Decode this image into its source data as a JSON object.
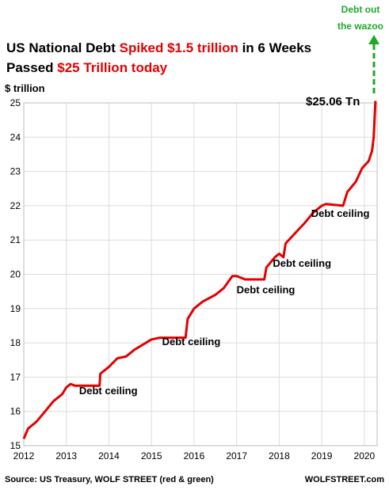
{
  "title": {
    "line1": [
      {
        "text": "US National Debt ",
        "color": "#000000"
      },
      {
        "text": "Spiked $1.5 trillion",
        "color": "#e30000"
      },
      {
        "text": " in 6 Weeks",
        "color": "#000000"
      }
    ],
    "line2": [
      {
        "text": "Passed ",
        "color": "#000000"
      },
      {
        "text": "$25 Trillion today",
        "color": "#e30000"
      }
    ]
  },
  "colors": {
    "series": "#e30000",
    "spike": "#1fa82a",
    "grid": "#dcdcdc"
  },
  "chart_data": {
    "type": "line",
    "ylabel": "$ trillion",
    "ylim": [
      15,
      25
    ],
    "xlim": [
      2012,
      2020.3
    ],
    "x_ticks": [
      "2012",
      "2013",
      "2014",
      "2015",
      "2016",
      "2017",
      "2018",
      "2019",
      "2020"
    ],
    "y_ticks": [
      "15",
      "16",
      "17",
      "18",
      "19",
      "20",
      "21",
      "22",
      "23",
      "24",
      "25"
    ],
    "grid": true,
    "series": [
      {
        "x": [
          2012.0,
          2012.1,
          2012.3,
          2012.5,
          2012.7,
          2012.9,
          2013.0,
          2013.1,
          2013.2,
          2013.6,
          2013.78,
          2013.8,
          2014.0,
          2014.2,
          2014.4,
          2014.6,
          2014.8,
          2015.0,
          2015.2,
          2015.8,
          2015.85,
          2016.0,
          2016.2,
          2016.5,
          2016.7,
          2016.9,
          2017.0,
          2017.2,
          2017.65,
          2017.7,
          2017.9,
          2018.0,
          2018.1,
          2018.15,
          2018.3,
          2018.6,
          2018.8,
          2019.0,
          2019.1,
          2019.5,
          2019.6,
          2019.8,
          2019.95,
          2020.1,
          2020.18,
          2020.22,
          2020.26
        ],
        "values": [
          15.2,
          15.5,
          15.7,
          16.0,
          16.3,
          16.5,
          16.7,
          16.8,
          16.75,
          16.75,
          16.75,
          17.1,
          17.3,
          17.55,
          17.6,
          17.8,
          17.95,
          18.1,
          18.15,
          18.15,
          18.7,
          19.0,
          19.2,
          19.4,
          19.6,
          19.95,
          19.95,
          19.85,
          19.85,
          20.2,
          20.5,
          20.6,
          20.5,
          20.9,
          21.1,
          21.5,
          21.8,
          22.0,
          22.05,
          22.0,
          22.4,
          22.7,
          23.1,
          23.3,
          23.6,
          24.0,
          25.06
        ]
      }
    ],
    "annotations": [
      {
        "text": "Debt ceiling",
        "x": 2013.3,
        "y": 16.5
      },
      {
        "text": "Debt ceiling",
        "x": 2015.25,
        "y": 17.93
      },
      {
        "text": "Debt ceiling",
        "x": 2017.0,
        "y": 19.45
      },
      {
        "text": "Debt ceiling",
        "x": 2017.85,
        "y": 20.22
      },
      {
        "text": "Debt ceiling",
        "x": 2018.75,
        "y": 21.68
      }
    ],
    "value_label": {
      "text": "$25.06 Tn",
      "x": 2020.2,
      "y": 25.06
    },
    "spike_label": {
      "line1": "Debt out",
      "line2": "the wazoo"
    }
  },
  "source": "Source: US Treasury, WOLF STREET (red & green)",
  "brand": "WOLFSTREET.com"
}
